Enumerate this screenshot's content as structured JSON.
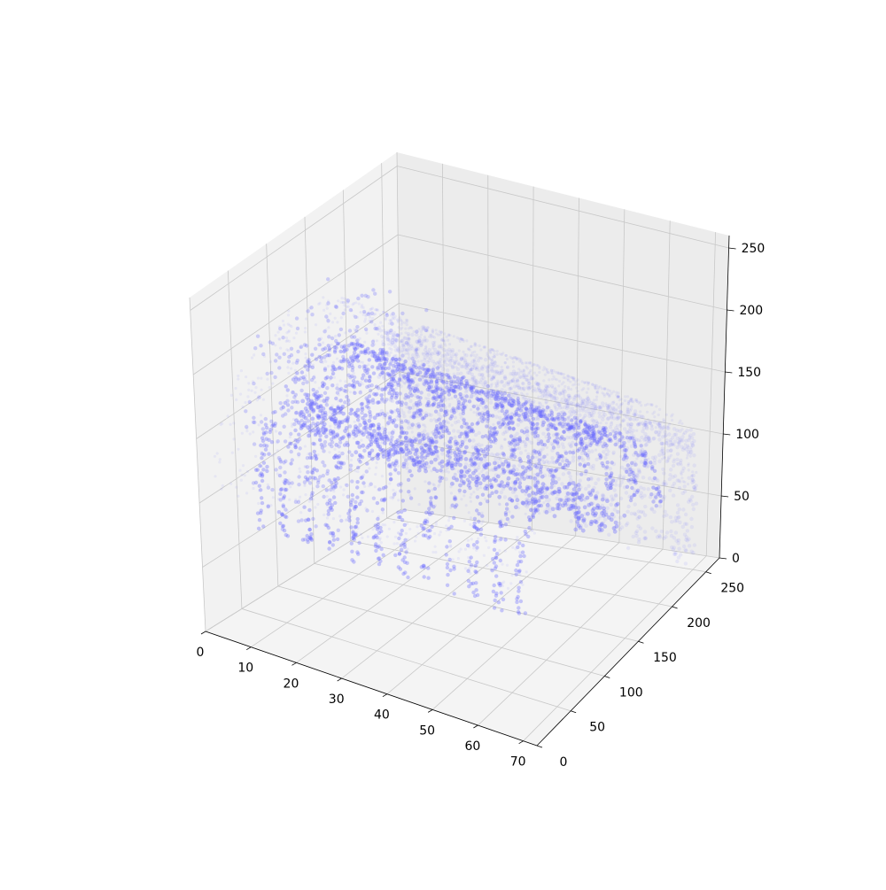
{
  "chart_data": {
    "type": "scatter",
    "projection": "3d",
    "title": "",
    "xlabel": "",
    "ylabel": "",
    "zlabel": "",
    "xlim": [
      0,
      73
    ],
    "ylim": [
      0,
      270
    ],
    "zlim": [
      0,
      260
    ],
    "x_ticks": [
      "0",
      "10",
      "20",
      "30",
      "40",
      "50",
      "60",
      "70"
    ],
    "y_ticks": [
      "0",
      "50",
      "100",
      "150",
      "200",
      "250"
    ],
    "z_ticks": [
      "0",
      "50",
      "100",
      "150",
      "200",
      "250"
    ],
    "grid": true,
    "marker_color": "#6a6aff",
    "marker_alpha": 0.25,
    "pane_colors": {
      "left": "#f2f2f2",
      "back": "#ececec",
      "floor": "#f4f4f4"
    },
    "description_series": [
      {
        "name": "",
        "x": [
          5,
          15,
          25,
          35,
          45,
          55,
          65,
          70
        ],
        "y": [
          128,
          128,
          128,
          128,
          128,
          128,
          128,
          128
        ],
        "z": [
          150,
          150,
          150,
          150,
          150,
          150,
          150,
          150
        ]
      }
    ]
  }
}
